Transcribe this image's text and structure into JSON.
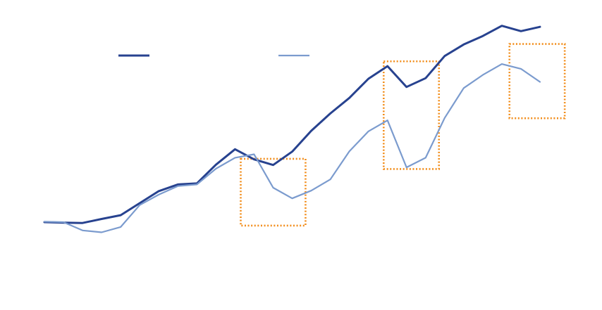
{
  "chart_data": {
    "type": "line",
    "title": "",
    "xlabel": "",
    "ylabel": "",
    "x": [
      0,
      1,
      2,
      3,
      4,
      5,
      6,
      7,
      8,
      9,
      10,
      11,
      12,
      13,
      14,
      15,
      16,
      17,
      18,
      19,
      20,
      21,
      22,
      23,
      24,
      25,
      26
    ],
    "ylim": [
      0,
      100
    ],
    "grid": false,
    "legend": "top",
    "series": [
      {
        "color": "#27428f",
        "width": 3,
        "values": [
          22.1,
          21.9,
          21.8,
          23.3,
          24.7,
          29.2,
          33.7,
          36.2,
          36.6,
          43.6,
          49.4,
          45.6,
          43.5,
          48.5,
          56.3,
          62.8,
          68.6,
          75.8,
          80.5,
          72.7,
          76.0,
          84.3,
          88.6,
          91.8,
          95.6,
          93.6,
          95.2
        ]
      },
      {
        "color": "#7b9bce",
        "width": 2.2,
        "values": [
          22.3,
          22.1,
          19.0,
          18.3,
          20.3,
          28.5,
          32.4,
          35.6,
          36.2,
          42.1,
          46.2,
          47.5,
          35.0,
          31.0,
          33.9,
          38.1,
          48.6,
          56.1,
          60.2,
          42.6,
          46.2,
          61.1,
          72.3,
          77.2,
          81.3,
          79.5,
          74.6
        ]
      }
    ],
    "highlights": [
      {
        "x_range": [
          10.3,
          13.7
        ],
        "y_range": [
          20.8,
          45.8
        ]
      },
      {
        "x_range": [
          17.8,
          20.7
        ],
        "y_range": [
          42.0,
          82.3
        ]
      },
      {
        "x_range": [
          24.4,
          27.3
        ],
        "y_range": [
          61.0,
          88.8
        ]
      }
    ],
    "highlight_color": "#f28e1c"
  }
}
